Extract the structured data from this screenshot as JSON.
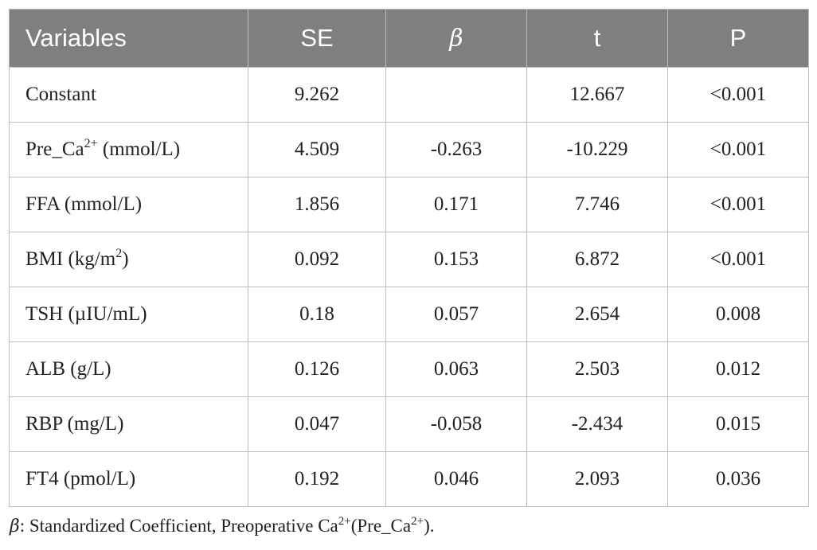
{
  "table": {
    "headers": {
      "variables": "Variables",
      "se": "SE",
      "beta": "β",
      "t": "t",
      "p": "P"
    },
    "rows": [
      {
        "variable": "Constant",
        "se": "9.262",
        "beta": "",
        "t": "12.667",
        "p": "<0.001"
      },
      {
        "variable_prefix": "Pre_Ca",
        "variable_sup": "2+",
        "variable_suffix": " (mmol/L)",
        "se": "4.509",
        "beta": "-0.263",
        "t": "-10.229",
        "p": "<0.001"
      },
      {
        "variable": "FFA (mmol/L)",
        "se": "1.856",
        "beta": "0.171",
        "t": "7.746",
        "p": "<0.001"
      },
      {
        "variable_prefix": "BMI (kg/m",
        "variable_sup": "2",
        "variable_suffix": ")",
        "se": "0.092",
        "beta": "0.153",
        "t": "6.872",
        "p": "<0.001"
      },
      {
        "variable": "TSH (µIU/mL)",
        "se": "0.18",
        "beta": "0.057",
        "t": "2.654",
        "p": "0.008"
      },
      {
        "variable": "ALB (g/L)",
        "se": "0.126",
        "beta": "0.063",
        "t": "2.503",
        "p": "0.012"
      },
      {
        "variable": "RBP (mg/L)",
        "se": "0.047",
        "beta": "-0.058",
        "t": "-2.434",
        "p": "0.015"
      },
      {
        "variable": "FT4 (pmol/L)",
        "se": "0.192",
        "beta": "0.046",
        "t": "2.093",
        "p": "0.036"
      }
    ]
  },
  "caption": {
    "beta_symbol": "β",
    "text_1": ": Standardized Coefficient, Preoperative Ca",
    "sup_1": "2+",
    "text_2": "(Pre_Ca",
    "sup_2": "2+",
    "text_3": ")."
  },
  "colors": {
    "header_bg": "#7f7f7f",
    "header_text": "#ffffff",
    "grid": "#bdbdbd",
    "body_text": "#222222"
  }
}
